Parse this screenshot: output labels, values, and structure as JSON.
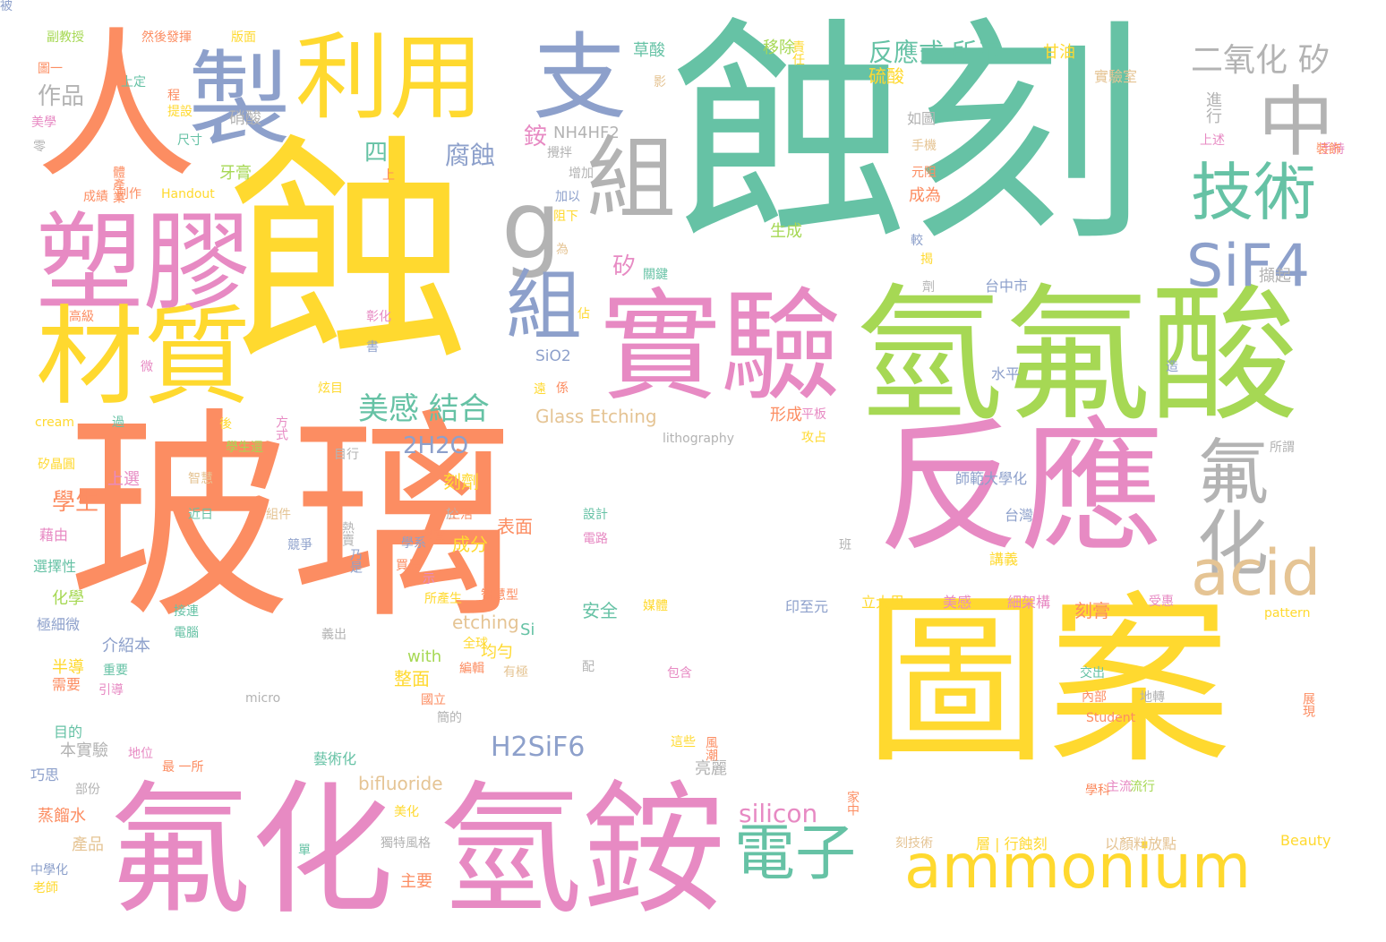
{
  "palette": {
    "orange": "#fc8d62",
    "teal": "#66c2a5",
    "pink": "#e78ac3",
    "yellow": "#ffd92f",
    "green": "#a6d854",
    "blue": "#8da0cb",
    "grey": "#b3b3b3",
    "tan": "#e5c494"
  },
  "words": [
    {
      "text": "玻璃",
      "color": "orange"
    },
    {
      "text": "蝕刻",
      "color": "teal"
    },
    {
      "text": "蝕",
      "color": "yellow"
    },
    {
      "text": "圖案",
      "color": "yellow"
    },
    {
      "text": "氫氟酸",
      "color": "green"
    },
    {
      "text": "反應",
      "color": "pink"
    },
    {
      "text": "氟化",
      "color": "pink"
    },
    {
      "text": "氫銨",
      "color": "pink"
    },
    {
      "text": "實驗",
      "color": "pink"
    },
    {
      "text": "人",
      "color": "orange"
    },
    {
      "text": "塑膠",
      "color": "pink"
    },
    {
      "text": "材質",
      "color": "yellow"
    },
    {
      "text": "製",
      "color": "blue"
    },
    {
      "text": "利用",
      "color": "yellow"
    },
    {
      "text": "支",
      "color": "blue"
    },
    {
      "text": "g",
      "color": "grey"
    },
    {
      "text": "組",
      "color": "grey"
    },
    {
      "text": "中",
      "color": "grey"
    },
    {
      "text": "技術",
      "color": "teal"
    },
    {
      "text": "SiF4",
      "color": "blue"
    },
    {
      "text": "組",
      "color": "blue"
    },
    {
      "text": "氟化",
      "color": "grey"
    },
    {
      "text": "acid",
      "color": "tan"
    },
    {
      "text": "ammonium",
      "color": "yellow"
    },
    {
      "text": "電子",
      "color": "teal"
    },
    {
      "text": "二氧化 矽",
      "color": "grey"
    },
    {
      "text": "美感 結合",
      "color": "teal"
    },
    {
      "text": "2H2O",
      "color": "blue"
    },
    {
      "text": "H2SiF6",
      "color": "blue"
    },
    {
      "text": "silicon",
      "color": "pink"
    },
    {
      "text": "腐蝕",
      "color": "blue"
    },
    {
      "text": "學生",
      "color": "orange"
    },
    {
      "text": "反應式 所示",
      "color": "teal"
    },
    {
      "text": "作品",
      "color": "grey"
    },
    {
      "text": "四",
      "color": "teal"
    },
    {
      "text": "銨",
      "color": "pink"
    },
    {
      "text": "NH4HF2",
      "color": "grey"
    },
    {
      "text": "硝酸",
      "color": "grey"
    },
    {
      "text": "牙膏",
      "color": "green"
    },
    {
      "text": "Glass Etching",
      "color": "tan"
    },
    {
      "text": "etching",
      "color": "tan"
    },
    {
      "text": "bifluoride",
      "color": "tan"
    },
    {
      "text": "with",
      "color": "green"
    },
    {
      "text": "Si",
      "color": "teal"
    },
    {
      "text": "SiO2",
      "color": "blue"
    },
    {
      "text": "矽",
      "color": "pink"
    },
    {
      "text": "刻劑",
      "color": "yellow"
    },
    {
      "text": "表面",
      "color": "orange"
    },
    {
      "text": "成分",
      "color": "yellow"
    },
    {
      "text": "整面",
      "color": "yellow"
    },
    {
      "text": "安全",
      "color": "teal"
    },
    {
      "text": "形成",
      "color": "orange"
    },
    {
      "text": "生成",
      "color": "green"
    },
    {
      "text": "成為",
      "color": "orange"
    },
    {
      "text": "刻膏",
      "color": "orange"
    },
    {
      "text": "硫酸",
      "color": "yellow"
    },
    {
      "text": "草酸",
      "color": "teal"
    },
    {
      "text": "移除",
      "color": "green"
    },
    {
      "text": "甘油",
      "color": "yellow"
    },
    {
      "text": "實驗室",
      "color": "tan"
    },
    {
      "text": "進行",
      "color": "grey"
    },
    {
      "text": "如圖",
      "color": "grey"
    },
    {
      "text": "台中市",
      "color": "blue"
    },
    {
      "text": "水平",
      "color": "blue"
    },
    {
      "text": "師範大學化",
      "color": "blue"
    },
    {
      "text": "台灣",
      "color": "blue"
    },
    {
      "text": "講義",
      "color": "yellow"
    },
    {
      "text": "美感",
      "color": "pink"
    },
    {
      "text": "細架構",
      "color": "pink"
    },
    {
      "text": "印至元",
      "color": "blue"
    },
    {
      "text": "立大里",
      "color": "yellow"
    },
    {
      "text": "pattern",
      "color": "yellow"
    },
    {
      "text": "Student",
      "color": "orange"
    },
    {
      "text": "Beauty",
      "color": "yellow"
    },
    {
      "text": "以顏料放點",
      "color": "tan"
    },
    {
      "text": "刻技術",
      "color": "tan"
    },
    {
      "text": "層 | 行蝕刻",
      "color": "yellow"
    },
    {
      "text": "化學",
      "color": "green"
    },
    {
      "text": "半導",
      "color": "yellow"
    },
    {
      "text": "蒸餾水",
      "color": "orange"
    },
    {
      "text": "產品",
      "color": "tan"
    },
    {
      "text": "主要",
      "color": "orange"
    },
    {
      "text": "獨特風格",
      "color": "grey"
    },
    {
      "text": "藝術化",
      "color": "teal"
    },
    {
      "text": "本實驗",
      "color": "grey"
    },
    {
      "text": "巧思",
      "color": "blue"
    },
    {
      "text": "目的",
      "color": "teal"
    },
    {
      "text": "需要",
      "color": "orange"
    },
    {
      "text": "藉由",
      "color": "pink"
    },
    {
      "text": "選擇性",
      "color": "teal"
    },
    {
      "text": "極細微",
      "color": "blue"
    },
    {
      "text": "介紹本",
      "color": "blue"
    },
    {
      "text": "過",
      "color": "teal"
    },
    {
      "text": "Handout",
      "color": "yellow"
    },
    {
      "text": "lithography",
      "color": "grey"
    },
    {
      "text": "micro",
      "color": "grey"
    },
    {
      "text": "cream",
      "color": "yellow"
    },
    {
      "text": "矽晶圓",
      "color": "yellow"
    },
    {
      "text": "副教授",
      "color": "green"
    },
    {
      "text": "圖一",
      "color": "orange"
    },
    {
      "text": "然後發揮",
      "color": "orange"
    },
    {
      "text": "版面",
      "color": "yellow"
    },
    {
      "text": "美學",
      "color": "pink"
    },
    {
      "text": "尺寸",
      "color": "teal"
    },
    {
      "text": "成績",
      "color": "orange"
    },
    {
      "text": "創作",
      "color": "orange"
    },
    {
      "text": "高級",
      "color": "orange"
    },
    {
      "text": "智慧",
      "color": "tan"
    },
    {
      "text": "近日",
      "color": "teal"
    },
    {
      "text": "組件",
      "color": "tan"
    },
    {
      "text": "乃是",
      "color": "blue"
    },
    {
      "text": "地位",
      "color": "pink"
    },
    {
      "text": "重要",
      "color": "teal"
    },
    {
      "text": "全球",
      "color": "yellow"
    },
    {
      "text": "設計",
      "color": "teal"
    },
    {
      "text": "電路",
      "color": "pink"
    },
    {
      "text": "手持",
      "color": "pink"
    },
    {
      "text": "上述",
      "color": "pink"
    },
    {
      "text": "流行",
      "color": "green"
    },
    {
      "text": "主流",
      "color": "pink"
    },
    {
      "text": "學科",
      "color": "orange"
    },
    {
      "text": "展現",
      "color": "orange"
    },
    {
      "text": "交出",
      "color": "teal"
    },
    {
      "text": "地轉",
      "color": "grey"
    },
    {
      "text": "內部",
      "color": "orange"
    },
    {
      "text": "部份",
      "color": "grey"
    },
    {
      "text": "老師",
      "color": "yellow"
    },
    {
      "text": "中學化",
      "color": "blue"
    },
    {
      "text": "最 一所",
      "color": "orange"
    },
    {
      "text": "引導",
      "color": "pink"
    },
    {
      "text": "亮麗",
      "color": "grey"
    },
    {
      "text": "這些",
      "color": "yellow"
    },
    {
      "text": "風潮",
      "color": "orange"
    },
    {
      "text": "編輯",
      "color": "orange"
    },
    {
      "text": "有極",
      "color": "tan"
    },
    {
      "text": "均勻",
      "color": "yellow"
    },
    {
      "text": "配",
      "color": "grey"
    },
    {
      "text": "包含",
      "color": "pink"
    },
    {
      "text": "後",
      "color": "yellow"
    },
    {
      "text": "學生還",
      "color": "green"
    },
    {
      "text": "目行",
      "color": "grey"
    },
    {
      "text": "炫目",
      "color": "yellow"
    },
    {
      "text": "方式",
      "color": "pink"
    },
    {
      "text": "係",
      "color": "orange"
    },
    {
      "text": "平板",
      "color": "pink"
    },
    {
      "text": "攻占",
      "color": "yellow"
    },
    {
      "text": "所謂",
      "color": "grey"
    },
    {
      "text": "班",
      "color": "grey"
    },
    {
      "text": "受惠",
      "color": "pink"
    },
    {
      "text": "媒體",
      "color": "yellow"
    },
    {
      "text": "關鍵",
      "color": "teal"
    },
    {
      "text": "增加",
      "color": "grey"
    },
    {
      "text": "加以",
      "color": "blue"
    },
    {
      "text": "阻下",
      "color": "yellow"
    },
    {
      "text": "為",
      "color": "tan"
    },
    {
      "text": "擷起",
      "color": "grey"
    },
    {
      "text": "造",
      "color": "blue"
    },
    {
      "text": "較",
      "color": "blue"
    },
    {
      "text": "元阻",
      "color": "orange"
    },
    {
      "text": "手機",
      "color": "tan"
    },
    {
      "text": "裝飾",
      "color": "orange"
    },
    {
      "text": "上選",
      "color": "pink"
    },
    {
      "text": "於",
      "color": "grey"
    },
    {
      "text": "生活",
      "color": "orange"
    },
    {
      "text": "思實",
      "color": "orange"
    },
    {
      "text": "學系",
      "color": "blue"
    },
    {
      "text": "買是",
      "color": "orange"
    },
    {
      "text": "熱賣",
      "color": "grey"
    },
    {
      "text": "競爭",
      "color": "blue"
    },
    {
      "text": "書",
      "color": "blue"
    },
    {
      "text": "彰化",
      "color": "pink"
    },
    {
      "text": "示",
      "color": "pink"
    },
    {
      "text": "智慧型",
      "color": "orange"
    },
    {
      "text": "所產生",
      "color": "yellow"
    },
    {
      "text": "義出",
      "color": "grey"
    },
    {
      "text": "電腦",
      "color": "teal"
    },
    {
      "text": "接連",
      "color": "teal"
    },
    {
      "text": "美化",
      "color": "yellow"
    },
    {
      "text": "國立",
      "color": "orange"
    },
    {
      "text": "簡的",
      "color": "grey"
    },
    {
      "text": "上定",
      "color": "teal"
    },
    {
      "text": "程",
      "color": "orange"
    },
    {
      "text": "提設",
      "color": "yellow"
    },
    {
      "text": "零",
      "color": "grey"
    },
    {
      "text": "影",
      "color": "tan"
    },
    {
      "text": "攪拌",
      "color": "grey"
    },
    {
      "text": "揭",
      "color": "yellow"
    },
    {
      "text": "劑",
      "color": "grey"
    },
    {
      "text": "佔",
      "color": "yellow"
    },
    {
      "text": "微",
      "color": "pink"
    },
    {
      "text": "上",
      "color": "orange"
    },
    {
      "text": "責任",
      "color": "yellow"
    },
    {
      "text": "遠",
      "color": "yellow"
    },
    {
      "text": "體產業",
      "color": "orange"
    },
    {
      "text": "家中",
      "color": "orange"
    },
    {
      "text": "單",
      "color": "teal"
    },
    {
      "text": "被",
      "color": "blue"
    }
  ]
}
